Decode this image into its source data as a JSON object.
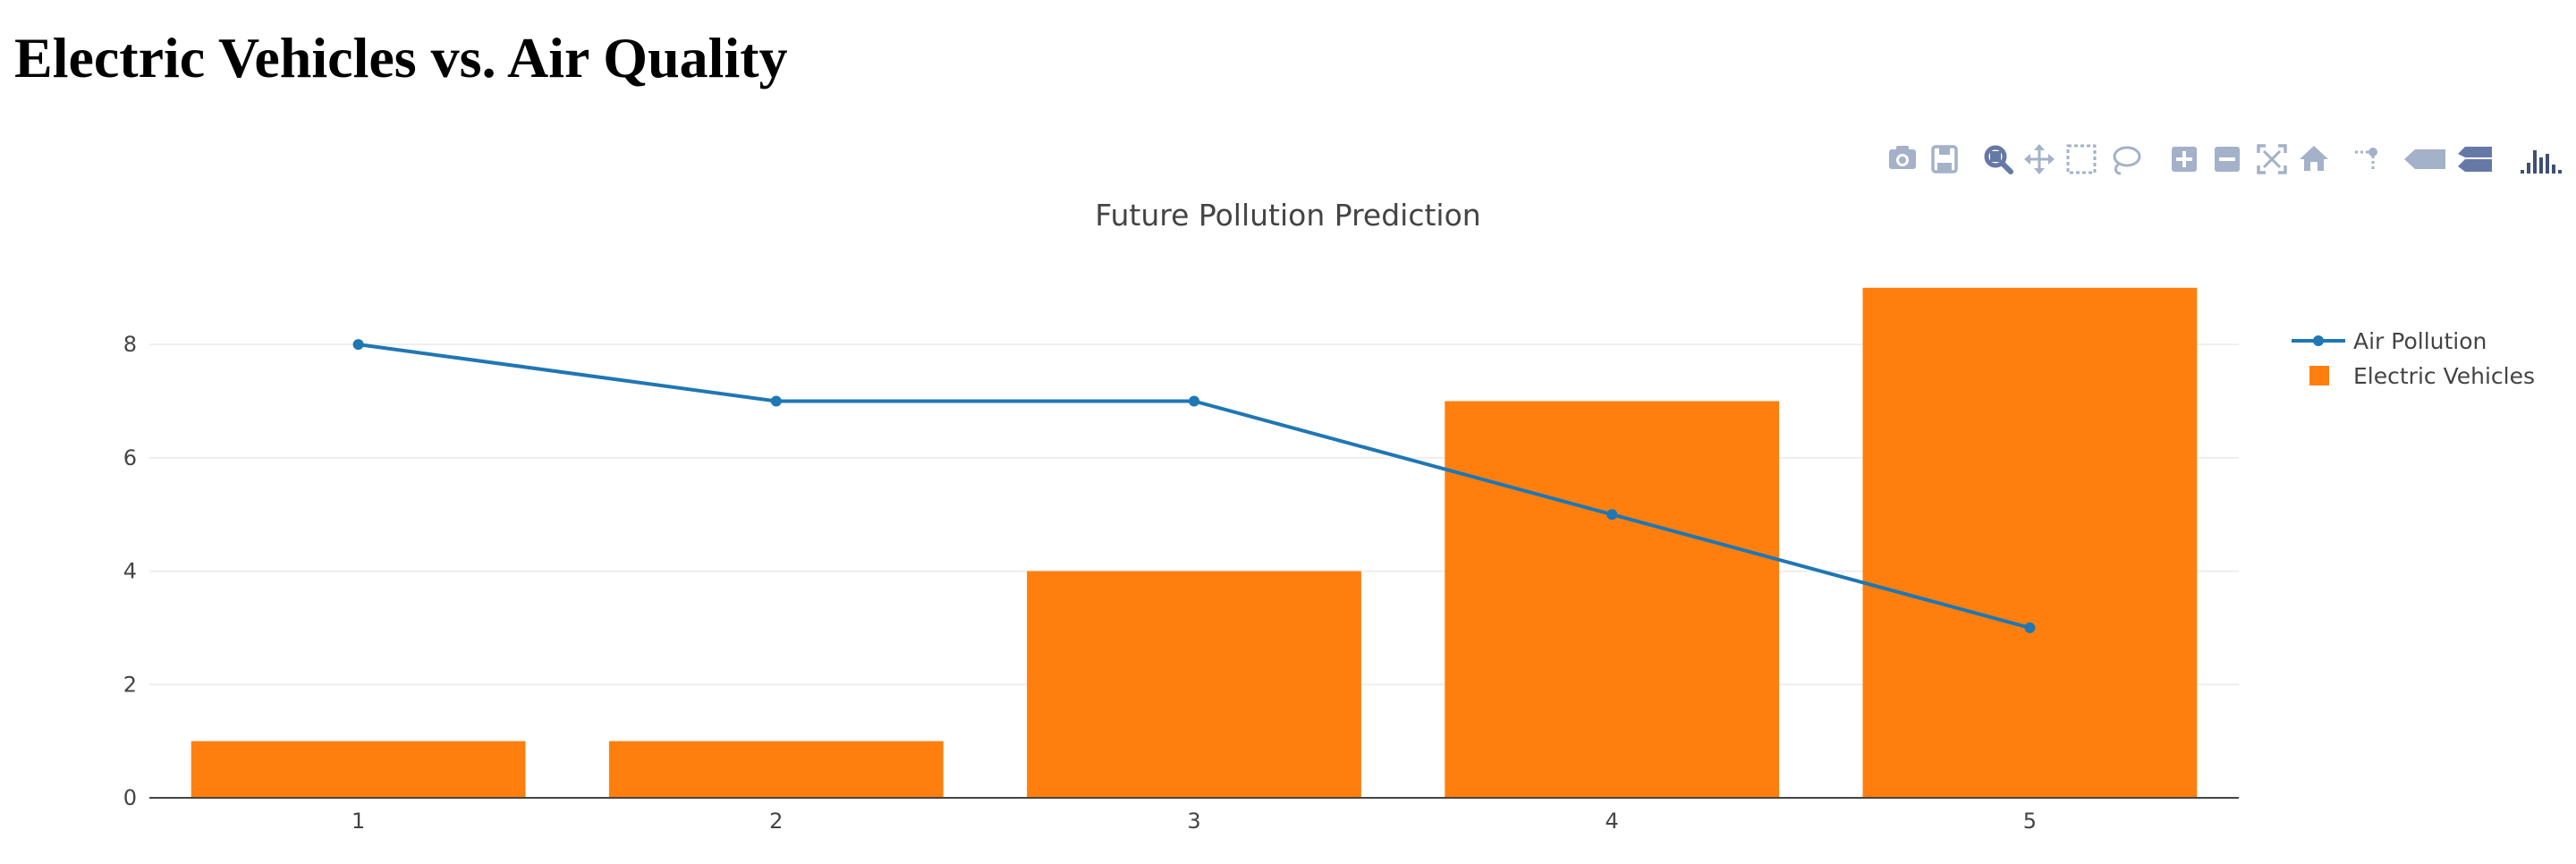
{
  "page": {
    "heading": "Electric Vehicles vs. Air Quality"
  },
  "modebar": {
    "buttons": [
      {
        "icon": "camera-icon"
      },
      {
        "icon": "save-icon"
      },
      {
        "icon": "zoom-icon"
      },
      {
        "icon": "pan-icon"
      },
      {
        "icon": "box-select-icon"
      },
      {
        "icon": "lasso-select-icon"
      },
      {
        "icon": "zoom-in-icon"
      },
      {
        "icon": "zoom-out-icon"
      },
      {
        "icon": "autoscale-icon"
      },
      {
        "icon": "reset-axes-icon"
      },
      {
        "icon": "spike-lines-icon"
      },
      {
        "icon": "hover-closest-icon"
      },
      {
        "icon": "hover-compare-icon"
      },
      {
        "icon": "plotly-logo-icon"
      }
    ],
    "colors": {
      "icon": "#a3b1c9",
      "active": "#6678a6",
      "logo": "#3f4f75"
    }
  },
  "chart_data": {
    "type": "bar",
    "title": "Future Pollution Prediction",
    "xlabel": "",
    "ylabel": "",
    "x": [
      1,
      2,
      3,
      4,
      5
    ],
    "x_tick_labels": [
      "1",
      "2",
      "3",
      "4",
      "5"
    ],
    "y_ticks": [
      0,
      2,
      4,
      6,
      8
    ],
    "y_tick_labels": [
      "0",
      "2",
      "4",
      "6",
      "8"
    ],
    "xlim": [
      0.5,
      5.5
    ],
    "ylim": [
      0,
      9.47
    ],
    "grid": true,
    "legend_position": "top-right",
    "series": [
      {
        "name": "Air Pollution",
        "type": "line+markers",
        "color": "#1f77b4",
        "values": [
          8,
          7,
          7,
          5,
          3
        ]
      },
      {
        "name": "Electric Vehicles",
        "type": "bar",
        "color": "#ff7f0e",
        "values": [
          1,
          1,
          4,
          7,
          9
        ]
      }
    ]
  }
}
